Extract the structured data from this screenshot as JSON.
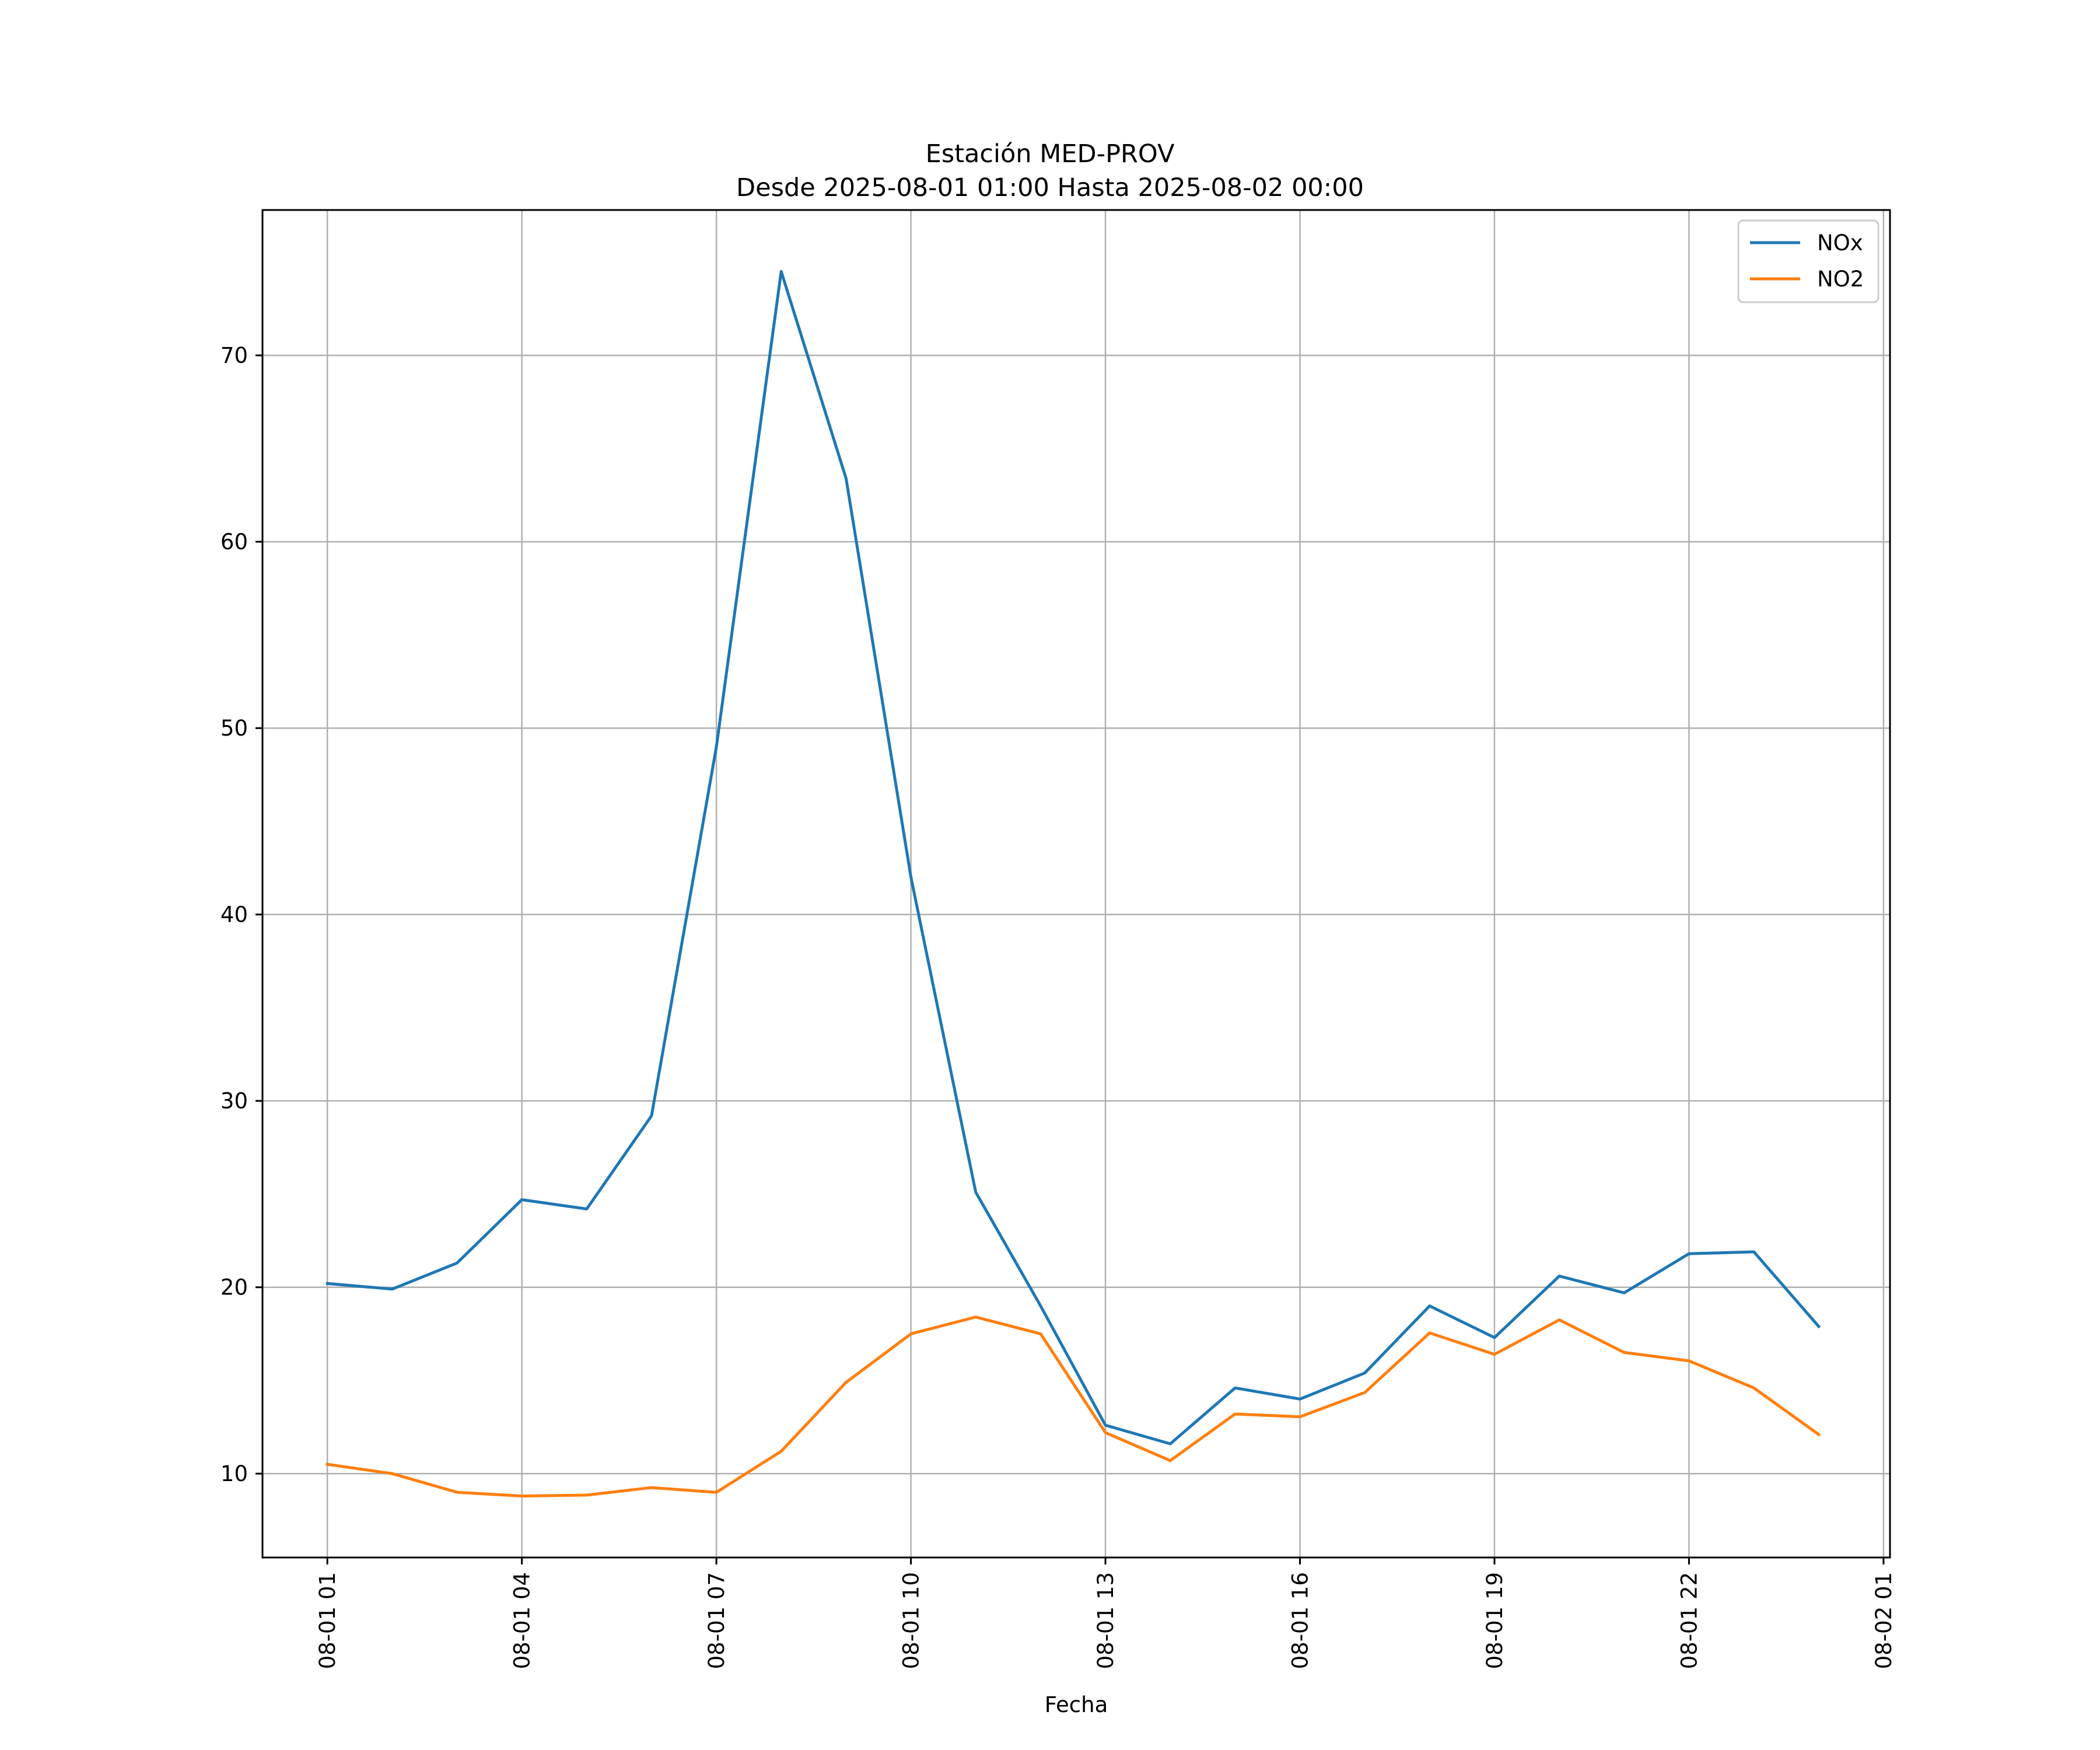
{
  "chart_data": {
    "type": "line",
    "title": "Estación MED-PROV",
    "subtitle": "Desde 2025-08-01 01:00 Hasta 2025-08-02 00:00",
    "xlabel": "Fecha",
    "ylabel": "",
    "x": [
      "2025-08-01 01:00",
      "2025-08-01 02:00",
      "2025-08-01 03:00",
      "2025-08-01 04:00",
      "2025-08-01 05:00",
      "2025-08-01 06:00",
      "2025-08-01 07:00",
      "2025-08-01 08:00",
      "2025-08-01 09:00",
      "2025-08-01 10:00",
      "2025-08-01 11:00",
      "2025-08-01 12:00",
      "2025-08-01 13:00",
      "2025-08-01 14:00",
      "2025-08-01 15:00",
      "2025-08-01 16:00",
      "2025-08-01 17:00",
      "2025-08-01 18:00",
      "2025-08-01 19:00",
      "2025-08-01 20:00",
      "2025-08-01 21:00",
      "2025-08-01 22:00",
      "2025-08-01 23:00",
      "2025-08-02 00:00"
    ],
    "x_tick_labels": [
      "08-01 01",
      "08-01 04",
      "08-01 07",
      "08-01 10",
      "08-01 13",
      "08-01 16",
      "08-01 19",
      "08-01 22",
      "08-02 01"
    ],
    "x_tick_values": [
      "2025-08-01 01:00",
      "2025-08-01 04:00",
      "2025-08-01 07:00",
      "2025-08-01 10:00",
      "2025-08-01 13:00",
      "2025-08-01 16:00",
      "2025-08-01 19:00",
      "2025-08-01 22:00",
      "2025-08-02 01:00"
    ],
    "xlim": [
      "2025-08-01 00:00:00",
      "2025-08-02 01:06:00"
    ],
    "y_ticks": [
      10,
      20,
      30,
      40,
      50,
      60,
      70
    ],
    "ylim": [
      5.5,
      77.8
    ],
    "grid": true,
    "legend_position": "top-right",
    "series": [
      {
        "name": "NOx",
        "color": "#1f77b4",
        "values": [
          20.2,
          19.9,
          21.3,
          24.7,
          24.2,
          29.2,
          49.0,
          74.5,
          63.4,
          42.0,
          25.1,
          19.0,
          12.6,
          11.6,
          14.6,
          14.0,
          15.4,
          19.0,
          17.3,
          20.6,
          19.7,
          21.8,
          21.9,
          17.9
        ]
      },
      {
        "name": "NO2",
        "color": "#ff7f0e",
        "values": [
          10.5,
          10.0,
          9.0,
          8.8,
          8.85,
          9.25,
          9.0,
          11.2,
          14.9,
          17.5,
          18.4,
          17.5,
          12.2,
          10.7,
          13.2,
          13.05,
          14.35,
          17.55,
          16.4,
          18.25,
          16.5,
          16.05,
          14.6,
          12.1
        ]
      }
    ]
  }
}
